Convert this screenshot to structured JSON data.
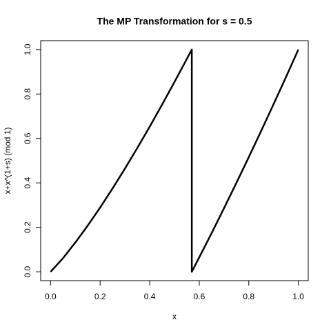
{
  "chart_data": {
    "type": "line",
    "title": "The MP Transformation for s = 0.5",
    "x_label": "x",
    "y_label": "x+x^(1+s) (mod 1)",
    "x": [
      0,
      0.05,
      0.1,
      0.15,
      0.2,
      0.25,
      0.3,
      0.35,
      0.4,
      0.45,
      0.5,
      0.55,
      0.57,
      0.57,
      0.6,
      0.65,
      0.7,
      0.75,
      0.8,
      0.85,
      0.9,
      0.95,
      1
    ],
    "y": [
      0,
      0.061,
      0.132,
      0.208,
      0.289,
      0.375,
      0.464,
      0.557,
      0.653,
      0.752,
      0.854,
      0.958,
      1,
      0,
      0.065,
      0.174,
      0.286,
      0.4,
      0.516,
      0.634,
      0.754,
      0.876,
      1
    ],
    "color": "#000000",
    "xlim": [
      -0.04,
      1.04
    ],
    "ylim": [
      -0.04,
      1.04
    ],
    "xticks": [
      {
        "value": 0,
        "label": "0.0"
      },
      0.2,
      0.4,
      0.6,
      0.8,
      {
        "value": 1,
        "label": "1.0"
      }
    ],
    "yticks": [
      {
        "value": 0,
        "label": "0.0"
      },
      0.2,
      0.4,
      0.6,
      0.8,
      {
        "value": 1,
        "label": "1.0"
      }
    ]
  }
}
